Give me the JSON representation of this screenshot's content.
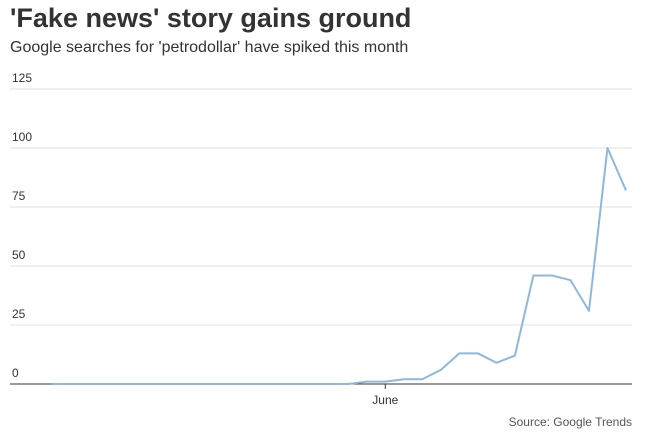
{
  "chart_data": {
    "type": "line",
    "title": "'Fake news' story gains ground",
    "subtitle": "Google searches for 'petrodollar' have spiked this month",
    "source": "Source: Google Trends",
    "categories": [
      null,
      null,
      null,
      null,
      null,
      null,
      null,
      null,
      null,
      null,
      null,
      null,
      null,
      null,
      null,
      null,
      null,
      null,
      "June",
      null,
      null,
      null,
      null,
      null,
      null,
      null,
      null,
      null,
      null,
      null,
      null,
      null
    ],
    "series": [
      {
        "name": "petrodollar",
        "color": "#8db8dc",
        "values": [
          0,
          0,
          0,
          0,
          0,
          0,
          0,
          0,
          0,
          0,
          0,
          0,
          0,
          0,
          0,
          0,
          0,
          1,
          1,
          2,
          2,
          6,
          13,
          13,
          9,
          12,
          46,
          46,
          44,
          31,
          100,
          82
        ]
      }
    ],
    "ylim": [
      0,
      125
    ],
    "yticks": [
      0,
      25,
      50,
      75,
      100,
      125
    ],
    "grid": true
  }
}
